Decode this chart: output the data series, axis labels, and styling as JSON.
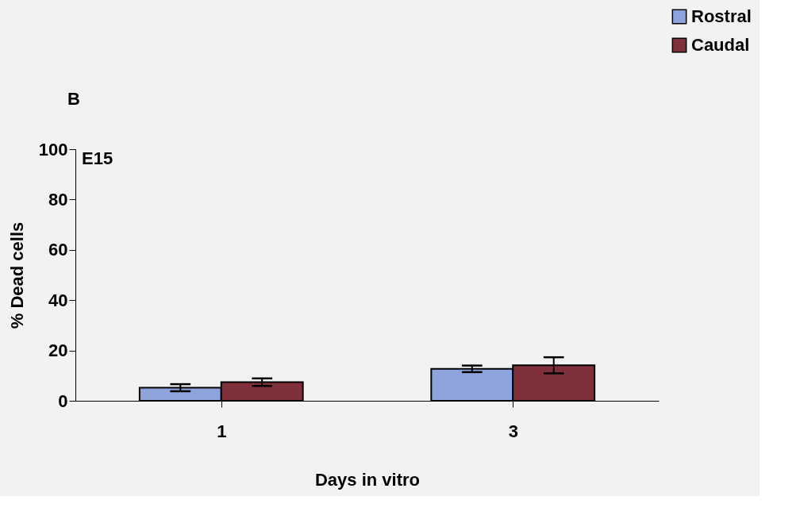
{
  "chart_data": {
    "type": "bar",
    "title": "B",
    "xlabel": "Days in vitro",
    "ylabel": "% Dead cells",
    "categories": [
      "1",
      "3"
    ],
    "series": [
      {
        "name": "Rostral",
        "color": "#8fa3dc",
        "values": [
          5.2,
          12.7
        ],
        "errors": [
          1.4,
          1.3
        ]
      },
      {
        "name": "Caudal",
        "color": "#80303a",
        "values": [
          7.4,
          14.1
        ],
        "errors": [
          1.5,
          3.2
        ]
      }
    ],
    "ylim": [
      0,
      100
    ],
    "yticks": [
      0,
      20,
      40,
      60,
      80,
      100
    ],
    "grid": false,
    "legend": "top right",
    "annotations": [
      "E15"
    ]
  }
}
